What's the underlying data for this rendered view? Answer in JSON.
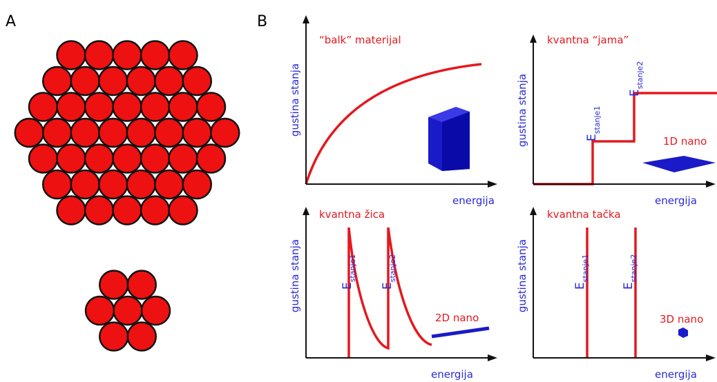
{
  "panel_labels": [
    "A",
    "B"
  ],
  "plots": [
    {
      "title": "“balk” materijal",
      "y_label": "gustina stanja",
      "x_label": "energija"
    },
    {
      "title": "kvantna “jama”",
      "y_label": "gustina stanja",
      "x_label": "energija",
      "levels": [
        {
          "symbol": "E",
          "subscript": "stanje1"
        },
        {
          "symbol": "E",
          "subscript": "stanje2"
        }
      ],
      "dimension_label": "1D nano"
    },
    {
      "title": "kvantna žica",
      "y_label": "gustina stanja",
      "x_label": "energija",
      "levels": [
        {
          "symbol": "E",
          "subscript": "stanje1"
        },
        {
          "symbol": "E",
          "subscript": "stanje2"
        }
      ],
      "dimension_label": "2D nano"
    },
    {
      "title": "kvantna tačka",
      "y_label": "gustina stanja",
      "x_label": "energija",
      "levels": [
        {
          "symbol": "E",
          "subscript": "stanje1"
        },
        {
          "symbol": "E",
          "subscript": "stanje2"
        }
      ],
      "dimension_label": "3D nano"
    }
  ]
}
